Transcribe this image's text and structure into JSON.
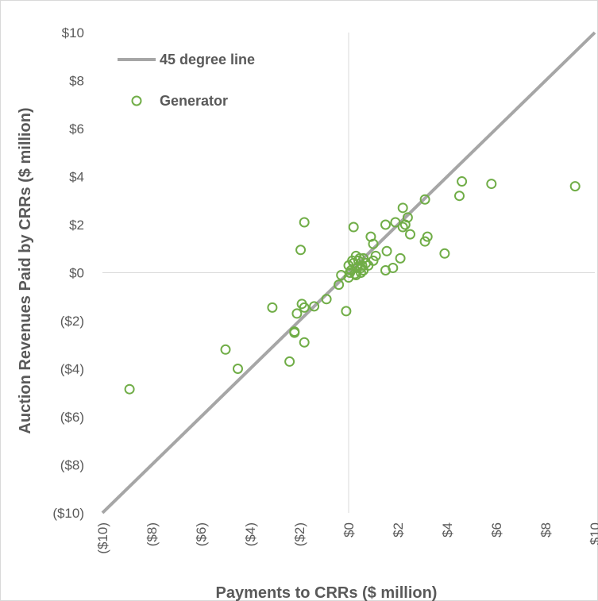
{
  "chart_data": {
    "type": "scatter",
    "title": "",
    "xlabel": "Payments to CRRs ($ million)",
    "ylabel": "Auction Revenues Paid by CRRs ($ million)",
    "xlim": [
      -10,
      10
    ],
    "ylim": [
      -10,
      10
    ],
    "x_ticks": [
      -10,
      -8,
      -6,
      -4,
      -2,
      0,
      2,
      4,
      6,
      8,
      10
    ],
    "y_ticks": [
      -10,
      -8,
      -6,
      -4,
      -2,
      0,
      2,
      4,
      6,
      8,
      10
    ],
    "x_tick_labels": [
      "($10)",
      "($8)",
      "($6)",
      "($4)",
      "($2)",
      "$0",
      "$2",
      "$4",
      "$6",
      "$8",
      "$10"
    ],
    "y_tick_labels": [
      "($10)",
      "($8)",
      "($6)",
      "($4)",
      "($2)",
      "$0",
      "$2",
      "$4",
      "$6",
      "$8",
      "$10"
    ],
    "grid": false,
    "legend_position": "top-left",
    "colors": {
      "line": "#a6a6a6",
      "marker": "#70ad47",
      "axis": "#d9d9d9",
      "text": "#595959"
    },
    "series": [
      {
        "name": "45 degree line",
        "kind": "line",
        "x": [
          -10,
          10
        ],
        "y": [
          -10,
          10
        ]
      },
      {
        "name": "Generator",
        "kind": "scatter",
        "x": [
          9.2,
          5.8,
          4.6,
          4.5,
          3.1,
          3.1,
          3.2,
          2.2,
          2.4,
          2.5,
          2.3,
          2.2,
          1.9,
          1.5,
          3.9,
          2.1,
          1.8,
          1.5,
          1.55,
          0.9,
          1.0,
          0.2,
          -1.8,
          -1.95,
          -1.9,
          -2.1,
          -1.8,
          -1.4,
          -0.9,
          -0.4,
          -0.1,
          -3.1,
          -2.2,
          -2.2,
          -1.8,
          -2.4,
          -5.0,
          -4.5,
          -8.9,
          0.0,
          0.1,
          0.2,
          0.3,
          0.4,
          0.5,
          0.6,
          0.7,
          0.8,
          1.0,
          1.1,
          0.3,
          0.5,
          0.6,
          0.0,
          0.15,
          0.35,
          0.45,
          0.25,
          0.55,
          0.05,
          -0.3
        ],
        "y": [
          3.6,
          3.7,
          3.8,
          3.2,
          3.05,
          1.3,
          1.5,
          2.7,
          2.3,
          1.6,
          2.0,
          1.9,
          2.1,
          2.0,
          0.8,
          0.6,
          0.2,
          0.1,
          0.9,
          1.5,
          1.2,
          1.9,
          2.1,
          0.95,
          -1.3,
          -1.7,
          -1.45,
          -1.4,
          -1.1,
          -0.5,
          -1.6,
          -1.45,
          -2.5,
          -2.45,
          -2.9,
          -3.7,
          -3.2,
          -4.0,
          -4.85,
          0.3,
          0.1,
          0.4,
          0.7,
          0.5,
          0.2,
          0.6,
          0.4,
          0.3,
          0.5,
          0.7,
          -0.1,
          0.0,
          0.1,
          -0.2,
          0.5,
          0.2,
          0.6,
          -0.05,
          0.3,
          0.0,
          -0.1
        ]
      }
    ]
  }
}
